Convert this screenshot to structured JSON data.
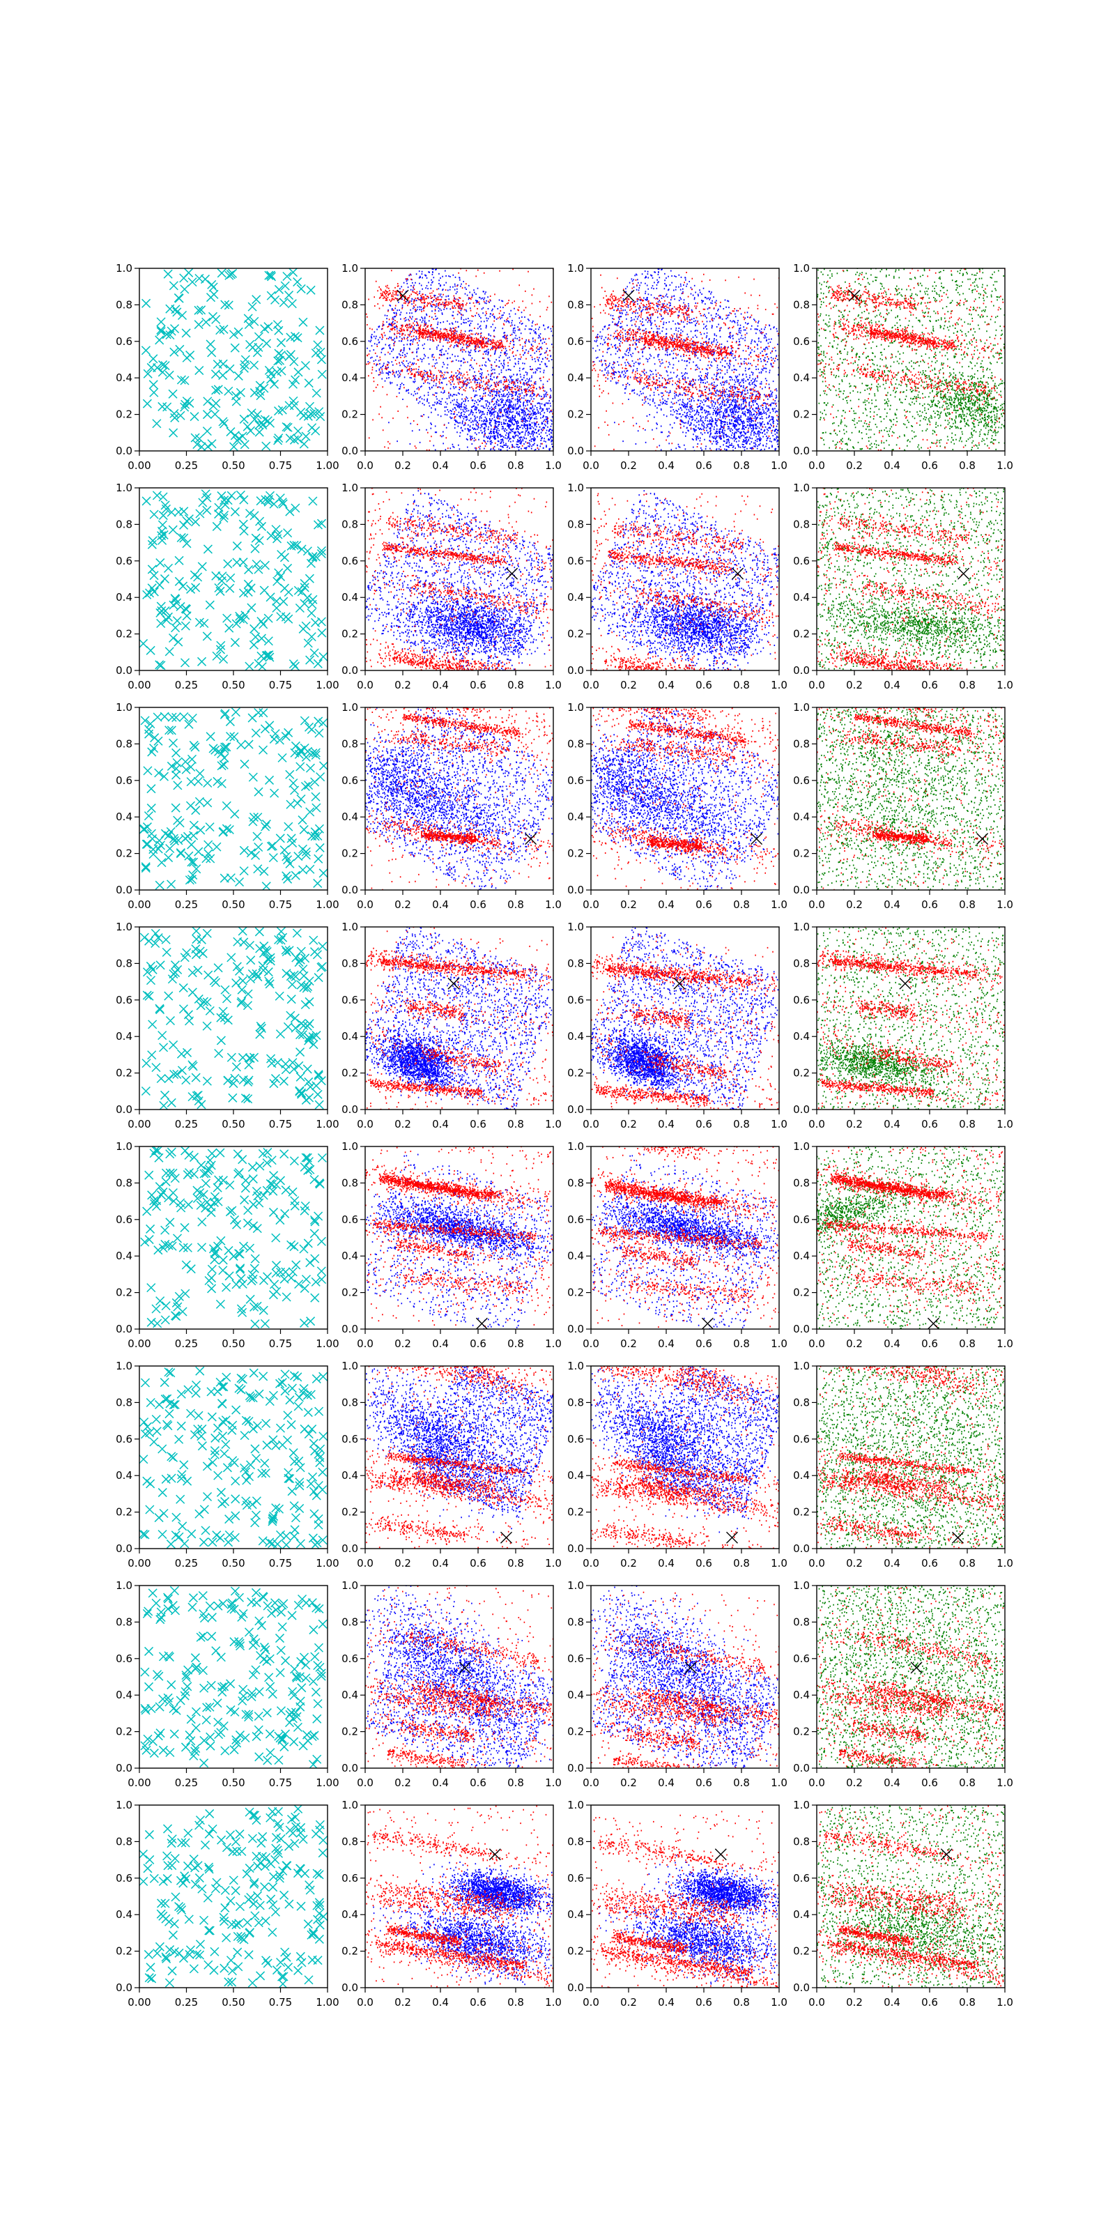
{
  "figure": {
    "rows": 8,
    "columns": 4,
    "colors": {
      "cyan": "#00bfbf",
      "red": "#ff0000",
      "blue": "#0000ff",
      "green": "#008000",
      "marker": "#000000"
    }
  },
  "chart_data": {
    "type": "scatter",
    "grid": false,
    "panel_layout": "8 rows x 4 columns",
    "columns": [
      {
        "kind": "scatter",
        "marker": "x",
        "color": "cyan",
        "xlim": [
          0,
          1
        ],
        "ylim": [
          0,
          1
        ],
        "xticks": [
          "0.00",
          "0.25",
          "0.50",
          "0.75",
          "1.00"
        ],
        "yticks": [
          "0.0",
          "0.2",
          "0.4",
          "0.6",
          "0.8",
          "1.0"
        ]
      },
      {
        "kind": "scatter",
        "marker": ".",
        "colors": [
          "red",
          "blue"
        ],
        "xlim": [
          0,
          1
        ],
        "ylim": [
          0,
          1
        ],
        "xticks": [
          "0.0",
          "0.2",
          "0.4",
          "0.6",
          "0.8",
          "1.0"
        ],
        "yticks": [
          "0.0",
          "0.2",
          "0.4",
          "0.6",
          "0.8",
          "1.0"
        ]
      },
      {
        "kind": "scatter",
        "marker": ".",
        "colors": [
          "red",
          "blue"
        ],
        "xlim": [
          0,
          1
        ],
        "ylim": [
          0,
          1
        ],
        "xticks": [
          "0.0",
          "0.2",
          "0.4",
          "0.6",
          "0.8",
          "1.0"
        ],
        "yticks": [
          "0.0",
          "0.2",
          "0.4",
          "0.6",
          "0.8",
          "1.0"
        ]
      },
      {
        "kind": "scatter",
        "marker": ".",
        "colors": [
          "red",
          "green"
        ],
        "xlim": [
          0,
          1
        ],
        "ylim": [
          0,
          1
        ],
        "xticks": [
          "0.0",
          "0.2",
          "0.4",
          "0.6",
          "0.8",
          "1.0"
        ],
        "yticks": [
          "0.0",
          "0.2",
          "0.4",
          "0.6",
          "0.8",
          "1.0"
        ]
      }
    ],
    "rows": [
      {
        "query_point": [
          0.2,
          0.85
        ],
        "blue_clusters": [
          [
            [
              0.5,
              0.55
            ],
            [
              0.45,
              0.35
            ],
            -30,
            1500,
            "uniform"
          ],
          [
            [
              0.8,
              0.15
            ],
            [
              0.2,
              0.12
            ],
            -10,
            1500,
            "gauss"
          ]
        ],
        "green_cluster": [
          0.82,
          0.25,
          0.14,
          0.08,
          -20,
          700
        ]
      },
      {
        "query_point": [
          0.78,
          0.53
        ],
        "blue_clusters": [
          [
            [
              0.5,
              0.45
            ],
            [
              0.45,
              0.4
            ],
            -25,
            1500,
            "uniform"
          ],
          [
            [
              0.55,
              0.25
            ],
            [
              0.16,
              0.07
            ],
            -10,
            1400,
            "gauss"
          ]
        ],
        "green_cluster": [
          0.55,
          0.25,
          0.25,
          0.06,
          -8,
          900
        ]
      },
      {
        "query_point": [
          0.88,
          0.28
        ],
        "blue_clusters": [
          [
            [
              0.5,
              0.5
            ],
            [
              0.45,
              0.4
            ],
            -30,
            1500,
            "uniform"
          ],
          [
            [
              0.25,
              0.55
            ],
            [
              0.28,
              0.1
            ],
            -25,
            1400,
            "gauss"
          ]
        ],
        "green_cluster": [
          0.45,
          0.55,
          0.3,
          0.25,
          -25,
          900
        ]
      },
      {
        "query_point": [
          0.47,
          0.69
        ],
        "blue_clusters": [
          [
            [
              0.5,
              0.5
            ],
            [
              0.45,
              0.4
            ],
            -20,
            1700,
            "uniform"
          ],
          [
            [
              0.28,
              0.26
            ],
            [
              0.1,
              0.06
            ],
            -25,
            1500,
            "gauss"
          ]
        ],
        "green_cluster": [
          0.3,
          0.25,
          0.16,
          0.05,
          -10,
          900
        ]
      },
      {
        "query_point": [
          0.62,
          0.03
        ],
        "blue_clusters": [
          [
            [
              0.5,
              0.45
            ],
            [
              0.45,
              0.4
            ],
            -20,
            900,
            "uniform"
          ],
          [
            [
              0.5,
              0.55
            ],
            [
              0.22,
              0.05
            ],
            -12,
            1500,
            "gauss"
          ]
        ],
        "green_cluster": [
          0.1,
          0.62,
          0.05,
          0.2,
          -70,
          700
        ]
      },
      {
        "query_point": [
          0.75,
          0.06
        ],
        "blue_clusters": [
          [
            [
              0.35,
              0.6
            ],
            [
              0.22,
              0.1
            ],
            -40,
            1500,
            "gauss"
          ],
          [
            [
              0.65,
              0.6
            ],
            [
              0.3,
              0.35
            ],
            -20,
            1500,
            "uniform"
          ]
        ],
        "green_cluster": [
          0.5,
          0.5,
          0.4,
          0.35,
          -20,
          1500
        ]
      },
      {
        "query_point": [
          0.53,
          0.55
        ],
        "blue_clusters": [
          [
            [
              0.45,
              0.55
            ],
            [
              0.28,
              0.12
            ],
            -40,
            1400,
            "gauss"
          ],
          [
            [
              0.5,
              0.35
            ],
            [
              0.45,
              0.3
            ],
            -20,
            1200,
            "uniform"
          ]
        ],
        "green_cluster": [
          0.5,
          0.45,
          0.4,
          0.35,
          -30,
          1400
        ]
      },
      {
        "query_point": [
          0.69,
          0.73
        ],
        "blue_clusters": [
          [
            [
              0.7,
              0.52
            ],
            [
              0.13,
              0.05
            ],
            -10,
            1700,
            "gauss"
          ],
          [
            [
              0.6,
              0.25
            ],
            [
              0.18,
              0.07
            ],
            -15,
            1500,
            "gauss"
          ]
        ],
        "green_cluster": [
          0.55,
          0.3,
          0.25,
          0.1,
          -10,
          900
        ]
      }
    ]
  }
}
